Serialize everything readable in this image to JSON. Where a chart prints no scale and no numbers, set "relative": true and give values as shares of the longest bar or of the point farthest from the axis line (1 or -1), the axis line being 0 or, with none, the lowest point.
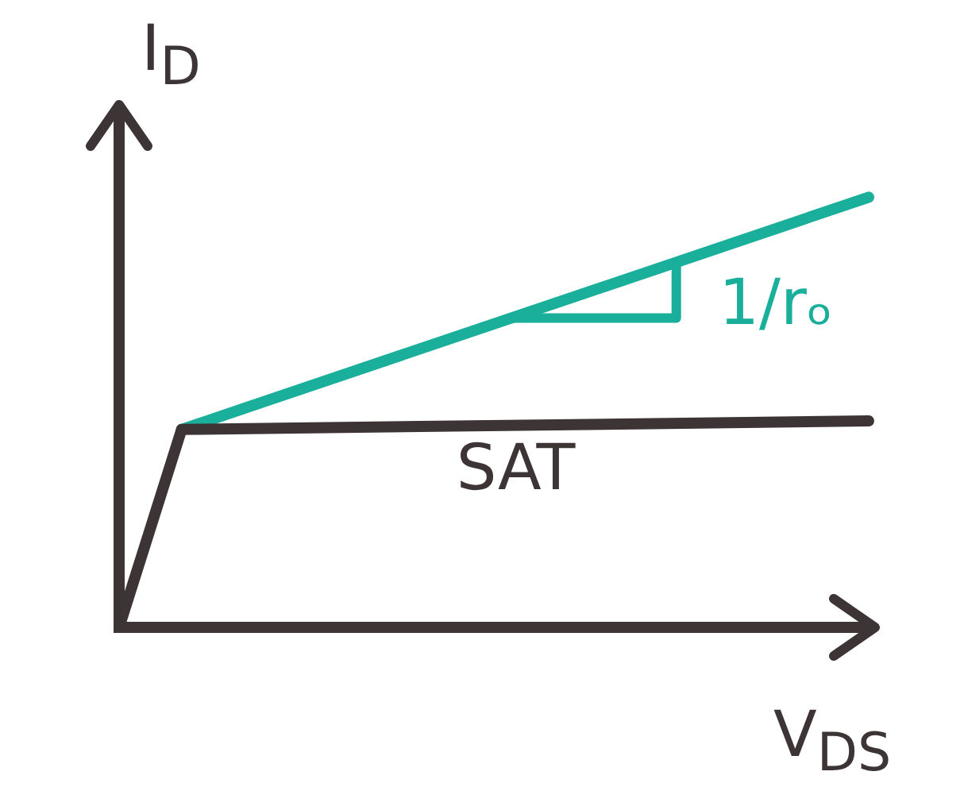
{
  "chart_data": {
    "type": "line",
    "relative": true,
    "ylabel": "I$_{D}$",
    "xlabel": "V$_{DS}$",
    "tick_labels": false,
    "grid": false,
    "legend": false,
    "marker": "none",
    "categories": [
      null,
      null,
      null,
      null,
      null,
      null,
      null,
      null,
      null,
      null,
      null,
      null,
      null
    ],
    "series": [
      {
        "color": "#3d3436",
        "values": [
          0,
          0.46,
          null,
          null,
          null,
          null,
          null,
          null,
          null,
          null,
          null,
          null,
          0.48
        ]
      },
      {
        "color": "#1aaf9a",
        "values": [
          null,
          0.46,
          null,
          null,
          null,
          null,
          null,
          null,
          null,
          null,
          null,
          null,
          1
        ]
      }
    ],
    "annotations": [
      "1/rₒ",
      "SAT"
    ]
  }
}
